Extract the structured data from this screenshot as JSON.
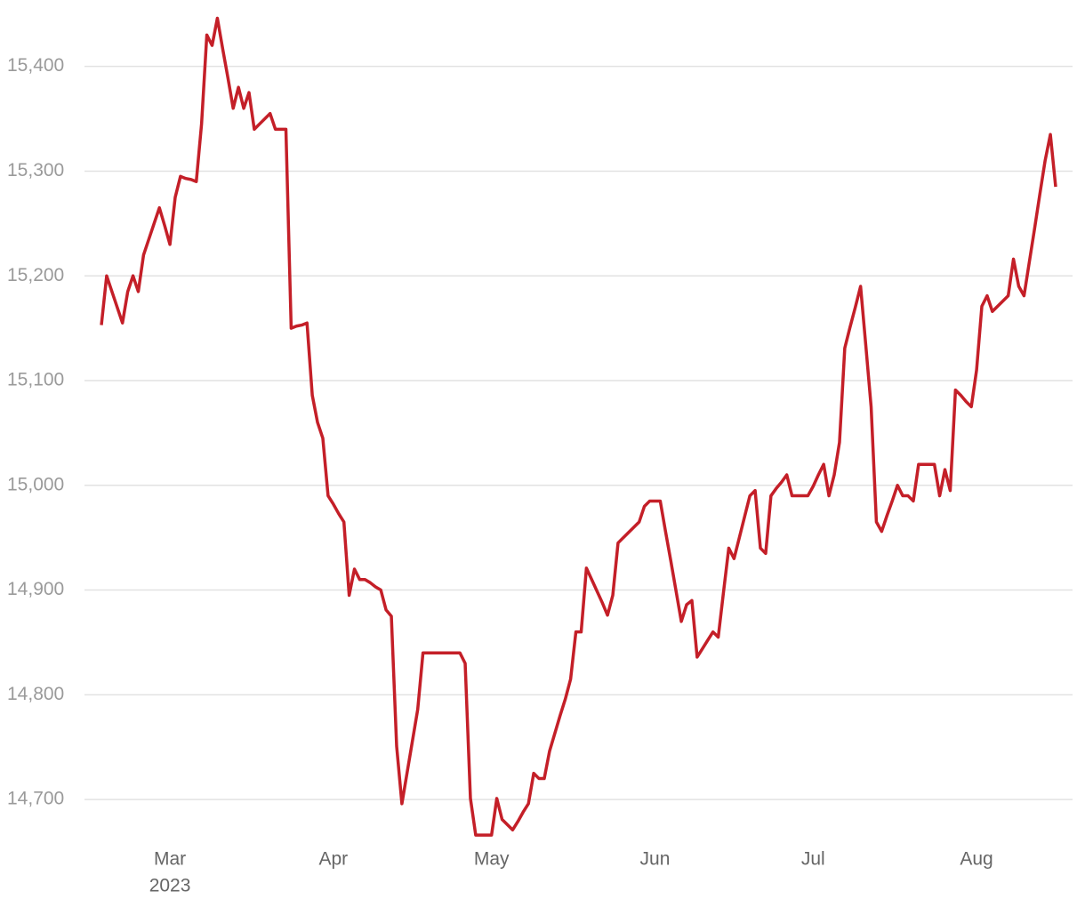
{
  "chart_data": {
    "type": "line",
    "categories": [
      null,
      null,
      null,
      null,
      null,
      null,
      null,
      null,
      null,
      null,
      null,
      null,
      null,
      "Mar",
      null,
      null,
      null,
      null,
      null,
      null,
      null,
      null,
      null,
      null,
      null,
      null,
      null,
      null,
      null,
      null,
      null,
      null,
      null,
      null,
      null,
      null,
      null,
      null,
      null,
      null,
      null,
      null,
      null,
      null,
      "Apr",
      null,
      null,
      null,
      null,
      null,
      null,
      null,
      null,
      null,
      null,
      null,
      null,
      null,
      null,
      null,
      null,
      null,
      null,
      null,
      null,
      null,
      null,
      null,
      null,
      null,
      null,
      null,
      null,
      null,
      "May",
      null,
      null,
      null,
      null,
      null,
      null,
      null,
      null,
      null,
      null,
      null,
      null,
      null,
      null,
      null,
      null,
      null,
      null,
      null,
      null,
      null,
      null,
      null,
      null,
      null,
      null,
      null,
      null,
      null,
      null,
      "Jun",
      null,
      null,
      null,
      null,
      null,
      null,
      null,
      null,
      null,
      null,
      null,
      null,
      null,
      null,
      null,
      null,
      null,
      null,
      null,
      null,
      null,
      null,
      null,
      null,
      null,
      null,
      null,
      null,
      null,
      "Jul",
      null,
      null,
      null,
      null,
      null,
      null,
      null,
      null,
      null,
      null,
      null,
      null,
      null,
      null,
      null,
      null,
      null,
      null,
      null,
      null,
      null,
      null,
      null,
      null,
      null,
      null,
      null,
      null,
      null,
      null,
      "Aug",
      null,
      null,
      null,
      null,
      null,
      null,
      null,
      null,
      null,
      null,
      null,
      null,
      null,
      null,
      null
    ],
    "year_label": "2023",
    "series": [
      {
        "color": "#c41f28",
        "values": [
          15153,
          15200,
          15185,
          15170,
          15155,
          15185,
          15200,
          15185,
          15220,
          15235,
          15250,
          15265,
          15248,
          15230,
          15275,
          15295,
          15293,
          15292,
          15290,
          15345,
          15430,
          15420,
          15446,
          15417,
          15389,
          15360,
          15380,
          15360,
          15375,
          15340,
          15345,
          15350,
          15355,
          15340,
          15340,
          15340,
          15150,
          15152,
          15153,
          15155,
          15086,
          15060,
          15045,
          14990,
          14982,
          14973,
          14965,
          14895,
          14920,
          14910,
          14910,
          14907,
          14903,
          14900,
          14881,
          14875,
          14751,
          14696,
          14726,
          14756,
          14786,
          14840,
          14840,
          14840,
          14840,
          14840,
          14840,
          14840,
          14840,
          14830,
          14701,
          14666,
          14666,
          14666,
          14666,
          14701,
          14681,
          14676,
          14671,
          14679,
          14688,
          14696,
          14725,
          14720,
          14720,
          14746,
          14763,
          14780,
          14796,
          14815,
          14860,
          14860,
          14921,
          14910,
          14899,
          14888,
          14876,
          14895,
          14945,
          14950,
          14955,
          14960,
          14965,
          14980,
          14985,
          14985,
          14985,
          14956,
          14928,
          14899,
          14870,
          14886,
          14890,
          14836,
          14844,
          14852,
          14860,
          14855,
          14898,
          14940,
          14930,
          14950,
          14970,
          14990,
          14995,
          14940,
          14935,
          14990,
          14997,
          15003,
          15010,
          14990,
          14990,
          14990,
          14990,
          14999,
          15010,
          15020,
          14990,
          15010,
          15041,
          15131,
          15151,
          15170,
          15190,
          15133,
          15075,
          14965,
          14956,
          14971,
          14985,
          15000,
          14990,
          14990,
          14985,
          15020,
          15020,
          15020,
          15020,
          14990,
          15015,
          14995,
          15091,
          15086,
          15080,
          15075,
          15110,
          15171,
          15181,
          15166,
          15171,
          15176,
          15181,
          15216,
          15190,
          15181,
          15213,
          15245,
          15278,
          15310,
          15335,
          15285
        ]
      }
    ],
    "ylim": [
      14650,
      15460
    ],
    "yticks": [
      {
        "value": 14700,
        "label": "14,700"
      },
      {
        "value": 14800,
        "label": "14,800"
      },
      {
        "value": 14900,
        "label": "14,900"
      },
      {
        "value": 15000,
        "label": "15,000"
      },
      {
        "value": 15100,
        "label": "15,100"
      },
      {
        "value": 15200,
        "label": "15,200"
      },
      {
        "value": 15300,
        "label": "15,300"
      },
      {
        "value": 15400,
        "label": "15,400"
      }
    ],
    "grid": true
  }
}
